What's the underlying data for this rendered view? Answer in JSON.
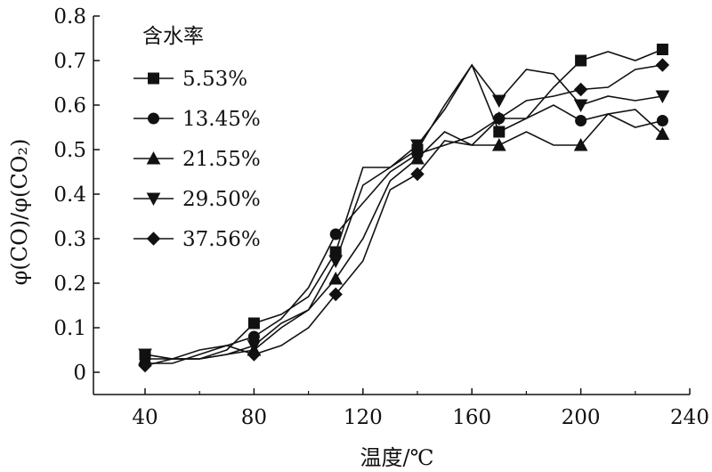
{
  "chart_data": {
    "type": "line",
    "xlabel": "温度/℃",
    "ylabel": "φ(CO)/φ(CO₂)",
    "xlim": [
      40,
      240
    ],
    "ylim": [
      0,
      0.8
    ],
    "xticks": [
      "40",
      "80",
      "120",
      "160",
      "200",
      "240"
    ],
    "yticks": [
      "0",
      "0.1",
      "0.2",
      "0.3",
      "0.4",
      "0.5",
      "0.6",
      "0.7",
      "0.8"
    ],
    "legend_title": "含水率",
    "legend_position": "top-left",
    "grid": false,
    "series": [
      {
        "name": "5.53%",
        "marker": "square",
        "x": [
          40,
          50,
          60,
          70,
          80,
          90,
          100,
          110,
          120,
          130,
          140,
          150,
          160,
          170,
          180,
          190,
          200,
          210,
          220,
          230
        ],
        "y": [
          0.04,
          0.03,
          0.03,
          0.05,
          0.11,
          0.13,
          0.17,
          0.27,
          0.46,
          0.46,
          0.5,
          0.6,
          0.69,
          0.54,
          0.57,
          0.64,
          0.7,
          0.72,
          0.7,
          0.725
        ]
      },
      {
        "name": "13.45%",
        "marker": "circle",
        "x": [
          40,
          50,
          60,
          70,
          80,
          90,
          100,
          110,
          120,
          130,
          140,
          150,
          160,
          170,
          180,
          190,
          200,
          210,
          220,
          230
        ],
        "y": [
          0.02,
          0.02,
          0.04,
          0.06,
          0.08,
          0.12,
          0.19,
          0.31,
          0.38,
          0.45,
          0.49,
          0.51,
          0.53,
          0.57,
          0.57,
          0.6,
          0.565,
          0.58,
          0.55,
          0.565
        ]
      },
      {
        "name": "21.55%",
        "marker": "triangle-up",
        "x": [
          40,
          50,
          60,
          70,
          80,
          90,
          100,
          110,
          120,
          130,
          140,
          150,
          160,
          170,
          180,
          190,
          200,
          210,
          220,
          230
        ],
        "y": [
          0.03,
          0.03,
          0.03,
          0.04,
          0.05,
          0.1,
          0.14,
          0.21,
          0.3,
          0.43,
          0.48,
          0.54,
          0.51,
          0.51,
          0.54,
          0.51,
          0.51,
          0.58,
          0.59,
          0.535
        ]
      },
      {
        "name": "29.50%",
        "marker": "triangle-down",
        "x": [
          40,
          50,
          60,
          70,
          80,
          90,
          100,
          110,
          120,
          130,
          140,
          150,
          160,
          170,
          180,
          190,
          200,
          210,
          220,
          230
        ],
        "y": [
          0.04,
          0.03,
          0.03,
          0.04,
          0.06,
          0.11,
          0.14,
          0.25,
          0.42,
          0.46,
          0.51,
          0.59,
          0.69,
          0.61,
          0.68,
          0.67,
          0.6,
          0.62,
          0.61,
          0.62
        ]
      },
      {
        "name": "37.56%",
        "marker": "diamond",
        "x": [
          40,
          50,
          60,
          70,
          80,
          90,
          100,
          110,
          120,
          130,
          140,
          150,
          160,
          170,
          180,
          190,
          200,
          210,
          220,
          230
        ],
        "y": [
          0.015,
          0.03,
          0.05,
          0.06,
          0.04,
          0.06,
          0.1,
          0.175,
          0.25,
          0.41,
          0.445,
          0.52,
          0.51,
          0.57,
          0.61,
          0.62,
          0.635,
          0.64,
          0.68,
          0.69
        ]
      }
    ],
    "marker_points_x": [
      40,
      80,
      110,
      140,
      170,
      200,
      230
    ]
  }
}
